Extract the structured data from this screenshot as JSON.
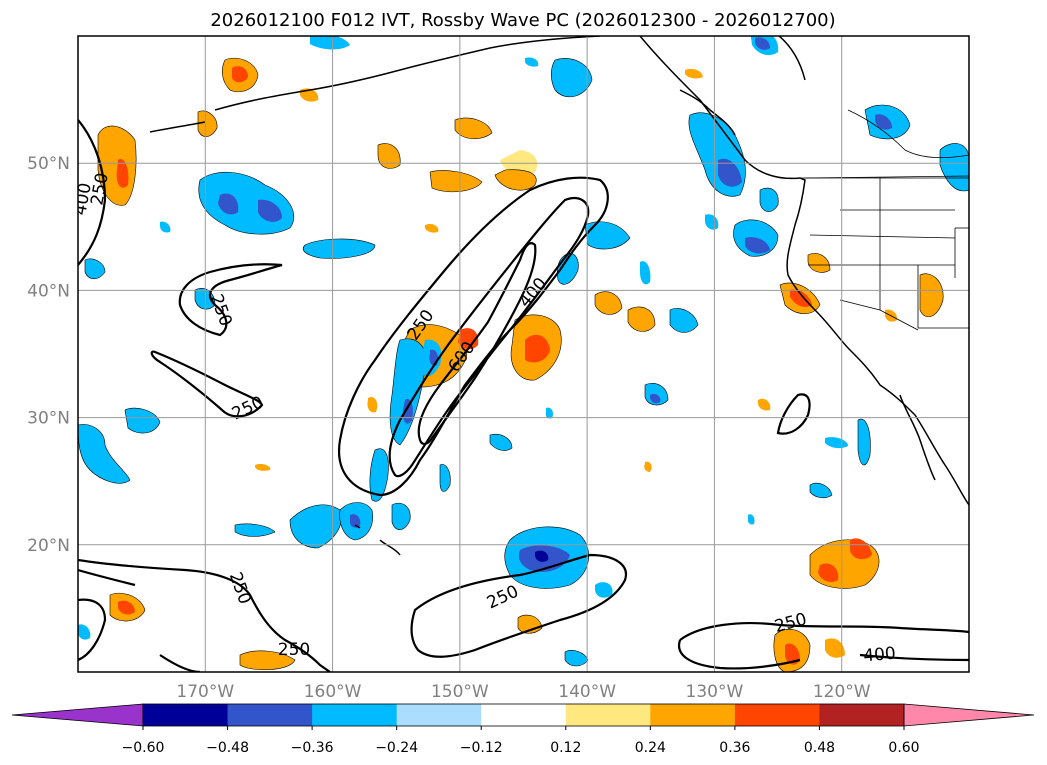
{
  "title": "2026012100 F012 IVT, Rossby Wave PC (2026012300 - 2026012700)",
  "chart_data": {
    "type": "heatmap",
    "title": "2026012100 F012 IVT, Rossby Wave PC (2026012300 - 2026012700)",
    "map_extent": {
      "lon": [
        -180,
        -110
      ],
      "lat": [
        10,
        60
      ]
    },
    "lat_labels": [
      "50°N",
      "40°N",
      "30°N",
      "20°N"
    ],
    "lat_values": [
      50,
      40,
      30,
      20
    ],
    "lon_labels": [
      "170°W",
      "160°W",
      "150°W",
      "140°W",
      "130°W",
      "120°W"
    ],
    "lon_values": [
      -170,
      -160,
      -150,
      -140,
      -130,
      -120
    ],
    "colorbar": {
      "ticks": [
        "−0.60",
        "−0.48",
        "−0.36",
        "−0.24",
        "−0.12",
        "0.12",
        "0.24",
        "0.36",
        "0.48",
        "0.60"
      ],
      "colors": [
        "#9933cc",
        "#000099",
        "#3355cc",
        "#00bbff",
        "#aaddff",
        "#ffffff",
        "#ffe880",
        "#ffa500",
        "#ff4500",
        "#b22222",
        "#ff88aa"
      ]
    },
    "contour_labels": [
      "250",
      "250",
      "250",
      "250",
      "250",
      "400",
      "600",
      "250",
      "250",
      "250",
      "400",
      "400",
      "250"
    ],
    "contour_levels": [
      250,
      400,
      600
    ]
  }
}
